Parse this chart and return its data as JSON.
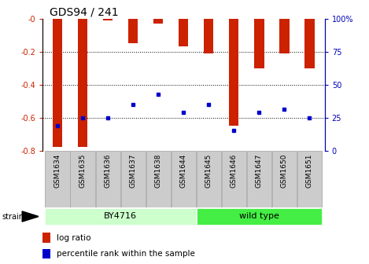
{
  "title": "GDS94 / 241",
  "samples": [
    "GSM1634",
    "GSM1635",
    "GSM1636",
    "GSM1637",
    "GSM1638",
    "GSM1644",
    "GSM1645",
    "GSM1646",
    "GSM1647",
    "GSM1650",
    "GSM1651"
  ],
  "log_ratios": [
    -0.78,
    -0.78,
    -0.01,
    -0.15,
    -0.03,
    -0.17,
    -0.21,
    -0.65,
    -0.3,
    -0.21,
    -0.3
  ],
  "percentile_values": [
    -0.65,
    -0.6,
    -0.6,
    -0.52,
    -0.46,
    -0.57,
    -0.52,
    -0.68,
    -0.57,
    -0.55,
    -0.6
  ],
  "strain_groups": [
    {
      "label": "BY4716",
      "start": 0,
      "end": 5
    },
    {
      "label": "wild type",
      "start": 6,
      "end": 10
    }
  ],
  "bar_color": "#cc2200",
  "marker_color": "#0000cc",
  "ylim_left": [
    -0.8,
    0.0
  ],
  "ylim_right": [
    0,
    100
  ],
  "left_color": "#cc2200",
  "right_color": "#0000bb",
  "yticks_left": [
    0.0,
    -0.2,
    -0.4,
    -0.6,
    -0.8
  ],
  "ytick_labels_left": [
    "-0",
    "-0.2",
    "-0.4",
    "-0.6",
    "-0.8"
  ],
  "yticks_right": [
    0,
    25,
    50,
    75,
    100
  ],
  "ytick_labels_right": [
    "0",
    "25",
    "50",
    "75",
    "100%"
  ],
  "dotted_gridlines": [
    -0.2,
    -0.4,
    -0.6
  ],
  "by4716_color": "#ccffcc",
  "wildtype_color": "#44ee44",
  "sample_cell_color": "#cccccc",
  "sample_cell_edge": "#aaaaaa",
  "strain_label": "strain",
  "legend_log_ratio": "log ratio",
  "legend_percentile": "percentile rank within the sample",
  "title_fontsize": 10,
  "tick_fontsize": 7,
  "sample_fontsize": 6.5,
  "strain_fontsize": 8,
  "legend_fontsize": 7.5
}
